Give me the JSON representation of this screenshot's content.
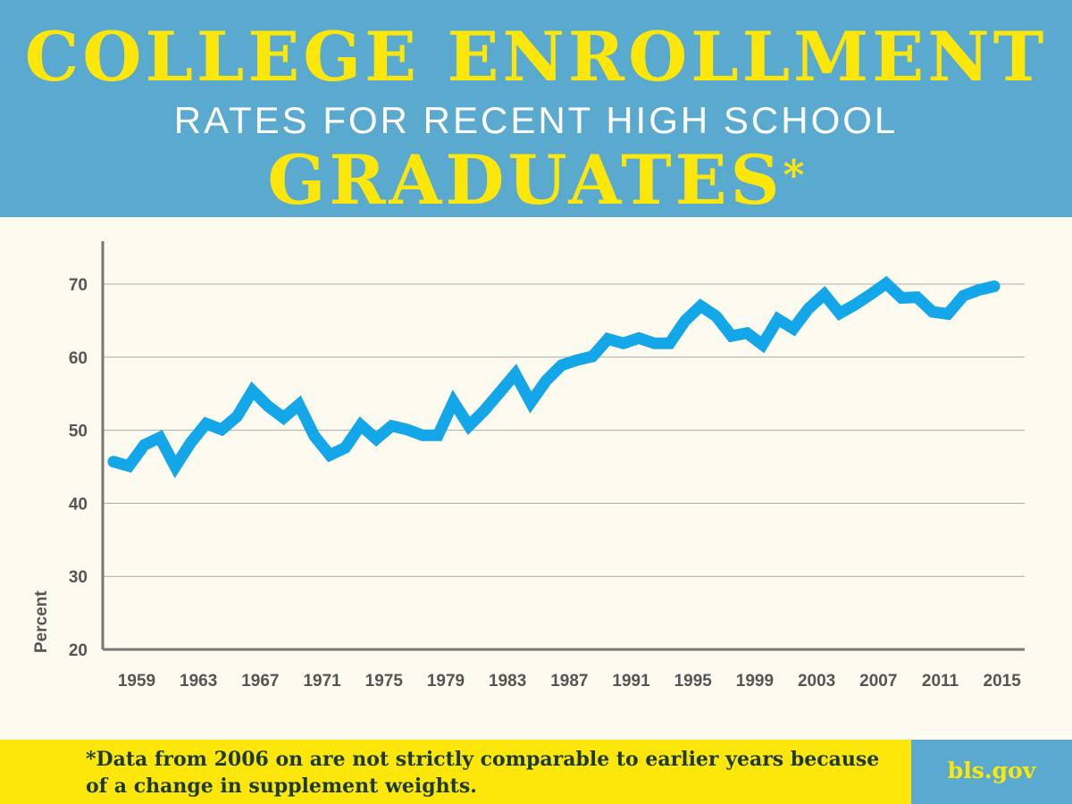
{
  "header": {
    "title_line1": "COLLEGE ENROLLMENT",
    "title_line2": "RATES FOR RECENT HIGH SCHOOL",
    "title_line3": "GRADUATES",
    "asterisk": "*"
  },
  "colors": {
    "header_bg": "#5aaad0",
    "accent_yellow": "#fde70a",
    "chart_bg": "#fdfbef",
    "line": "#13a6e8"
  },
  "chart_data": {
    "type": "line",
    "title": "College enrollment rates for recent high school graduates",
    "xlabel": "",
    "ylabel": "Percent",
    "ylim": [
      20,
      75
    ],
    "yticks": [
      20,
      30,
      40,
      50,
      60,
      70
    ],
    "xticks": [
      "1959",
      "1963",
      "1967",
      "1971",
      "1975",
      "1979",
      "1983",
      "1987",
      "1991",
      "1995",
      "1999",
      "2003",
      "2007",
      "2011",
      "2015"
    ],
    "grid": true,
    "series": [
      {
        "name": "College enrollment rate",
        "x": [
          1959,
          1960,
          1961,
          1962,
          1963,
          1964,
          1965,
          1966,
          1967,
          1968,
          1969,
          1970,
          1971,
          1972,
          1973,
          1974,
          1975,
          1976,
          1977,
          1978,
          1979,
          1980,
          1981,
          1982,
          1983,
          1984,
          1985,
          1986,
          1987,
          1988,
          1989,
          1990,
          1991,
          1992,
          1993,
          1994,
          1995,
          1996,
          1997,
          1998,
          1999,
          2000,
          2001,
          2002,
          2003,
          2004,
          2005,
          2006,
          2007,
          2008,
          2009,
          2010,
          2011,
          2012,
          2013,
          2014,
          2015,
          2016
        ],
        "values": [
          45.7,
          45.1,
          48.0,
          49.0,
          45.0,
          48.3,
          50.9,
          50.1,
          51.9,
          55.4,
          53.3,
          51.7,
          53.5,
          49.2,
          46.6,
          47.6,
          50.7,
          48.8,
          50.6,
          50.1,
          49.3,
          49.3,
          53.9,
          50.6,
          52.7,
          55.2,
          57.7,
          53.8,
          56.8,
          58.9,
          59.6,
          60.1,
          62.5,
          61.9,
          62.6,
          61.9,
          61.9,
          65.0,
          67.0,
          65.6,
          62.9,
          63.3,
          61.7,
          65.2,
          63.9,
          66.7,
          68.6,
          66.0,
          67.2,
          68.6,
          70.1,
          68.1,
          68.2,
          66.2,
          65.9,
          68.4,
          69.2,
          69.7
        ]
      }
    ]
  },
  "footer": {
    "note": "*Data from 2006 on are not strictly comparable to earlier years because of a change in supplement weights.",
    "site": "bls.gov"
  }
}
